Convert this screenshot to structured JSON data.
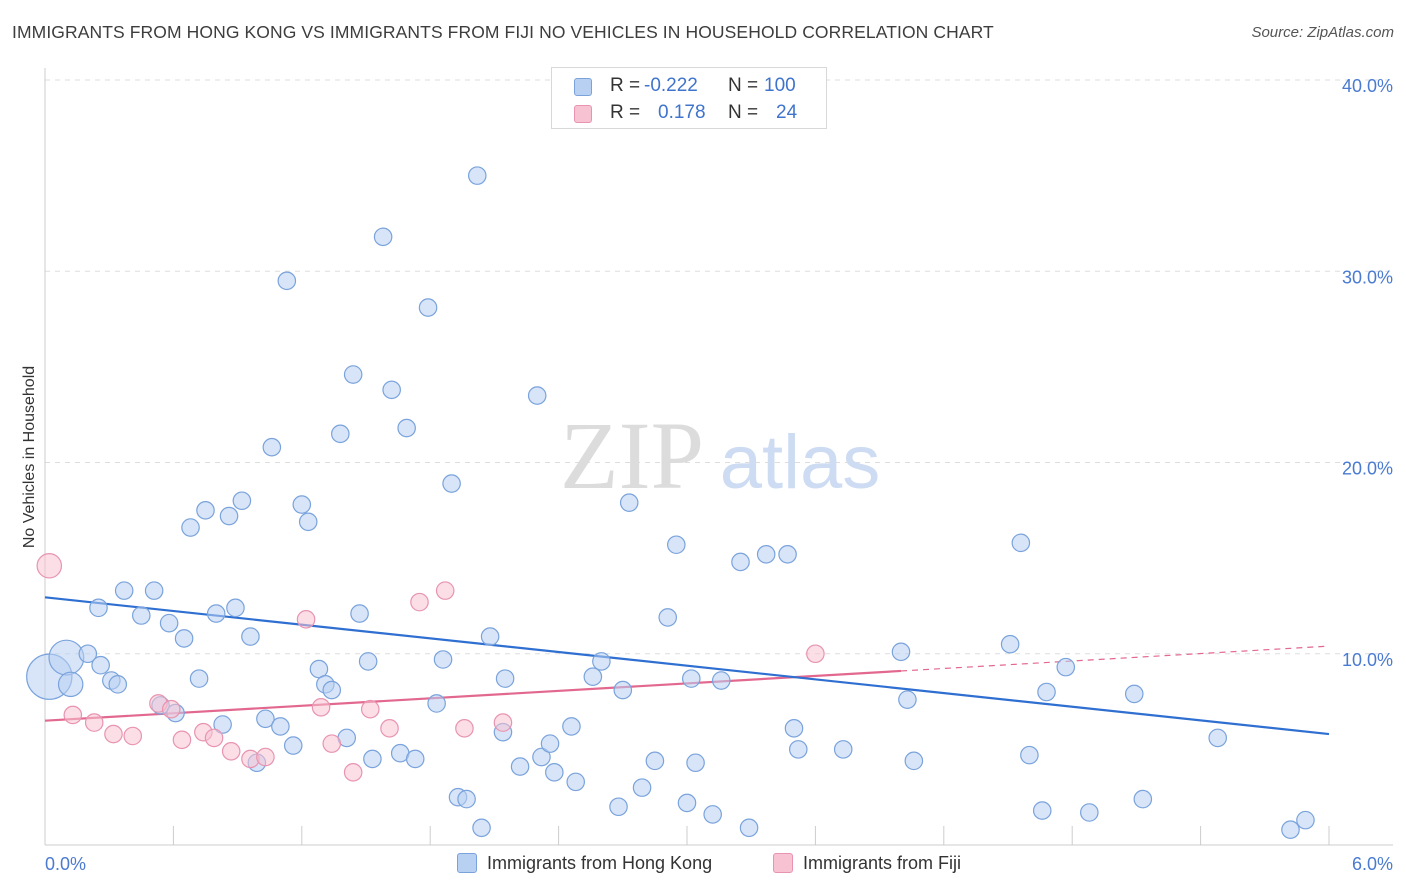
{
  "title": "IMMIGRANTS FROM HONG KONG VS IMMIGRANTS FROM FIJI NO VEHICLES IN HOUSEHOLD CORRELATION CHART",
  "source": "Source: ZipAtlas.com",
  "watermark": {
    "zip": "ZIP",
    "atlas": "atlas"
  },
  "legend": {
    "rows": [
      {
        "r_label": "R =",
        "r_value": "-0.222",
        "n_label": "N =",
        "n_value": "100"
      },
      {
        "r_label": "R =",
        "r_value": "0.178",
        "n_label": "N =",
        "n_value": "24"
      }
    ]
  },
  "bottom_legend": {
    "items": [
      {
        "label": "Immigrants from Hong Kong"
      },
      {
        "label": "Immigrants from Fiji"
      }
    ]
  },
  "colors": {
    "hk_fill": "#b8d0f2",
    "hk_stroke": "#7aa3dc",
    "hk_line": "#2f6fd1",
    "fiji_fill": "#f7c2d2",
    "fiji_stroke": "#e894b1",
    "fiji_line": "#e2688f",
    "grid": "#dddddd",
    "tick_label": "#4a7bd0"
  },
  "chart_data": {
    "type": "scatter",
    "title": "IMMIGRANTS FROM HONG KONG VS IMMIGRANTS FROM FIJI NO VEHICLES IN HOUSEHOLD CORRELATION CHART",
    "xlabel": "",
    "ylabel": "No Vehicles in Household",
    "xlim": [
      0,
      6
    ],
    "ylim": [
      0,
      40
    ],
    "x_tick_labels": [
      "0.0%",
      "6.0%"
    ],
    "y_ticks": [
      10,
      20,
      30,
      40
    ],
    "y_tick_labels": [
      "10.0%",
      "20.0%",
      "30.0%",
      "40.0%"
    ],
    "grid": true,
    "legend_position": "top-center",
    "series": [
      {
        "name": "Immigrants from Hong Kong",
        "r": -0.222,
        "n": 100,
        "trend": {
          "x": [
            0,
            6
          ],
          "y": [
            12.95,
            5.8
          ]
        },
        "points": [
          [
            0.02,
            8.8,
            26
          ],
          [
            0.1,
            9.8,
            20
          ],
          [
            0.12,
            8.4,
            14
          ],
          [
            0.2,
            10.0,
            10
          ],
          [
            0.25,
            12.4,
            10
          ],
          [
            0.26,
            9.4,
            10
          ],
          [
            0.31,
            8.6,
            10
          ],
          [
            0.34,
            8.4,
            10
          ],
          [
            0.37,
            13.3,
            10
          ],
          [
            0.45,
            12.0,
            10
          ],
          [
            0.51,
            13.3,
            10
          ],
          [
            0.54,
            7.3,
            10
          ],
          [
            0.58,
            11.6,
            10
          ],
          [
            0.61,
            6.9,
            10
          ],
          [
            0.65,
            10.8,
            10
          ],
          [
            0.68,
            16.6,
            10
          ],
          [
            0.72,
            8.7,
            10
          ],
          [
            0.75,
            17.5,
            10
          ],
          [
            0.8,
            12.1,
            10
          ],
          [
            0.83,
            6.3,
            10
          ],
          [
            0.86,
            17.2,
            10
          ],
          [
            0.89,
            12.4,
            10
          ],
          [
            0.92,
            18.0,
            10
          ],
          [
            0.96,
            10.9,
            10
          ],
          [
            0.99,
            4.3,
            10
          ],
          [
            1.03,
            6.6,
            10
          ],
          [
            1.06,
            20.8,
            10
          ],
          [
            1.1,
            6.2,
            10
          ],
          [
            1.13,
            29.5,
            10
          ],
          [
            1.16,
            5.2,
            10
          ],
          [
            1.2,
            17.8,
            10
          ],
          [
            1.23,
            16.9,
            10
          ],
          [
            1.28,
            9.2,
            10
          ],
          [
            1.31,
            8.4,
            10
          ],
          [
            1.34,
            8.1,
            10
          ],
          [
            1.38,
            21.5,
            10
          ],
          [
            1.41,
            5.6,
            10
          ],
          [
            1.44,
            24.6,
            10
          ],
          [
            1.47,
            12.1,
            10
          ],
          [
            1.51,
            9.6,
            10
          ],
          [
            1.53,
            4.5,
            10
          ],
          [
            1.58,
            31.8,
            10
          ],
          [
            1.62,
            23.8,
            10
          ],
          [
            1.66,
            4.8,
            10
          ],
          [
            1.69,
            21.8,
            10
          ],
          [
            1.73,
            4.5,
            10
          ],
          [
            1.79,
            28.1,
            10
          ],
          [
            1.83,
            7.4,
            10
          ],
          [
            1.86,
            9.7,
            10
          ],
          [
            1.9,
            18.9,
            10
          ],
          [
            1.93,
            2.5,
            10
          ],
          [
            1.97,
            2.4,
            10
          ],
          [
            2.02,
            35.0,
            10
          ],
          [
            2.04,
            0.9,
            10
          ],
          [
            2.08,
            10.9,
            10
          ],
          [
            2.14,
            5.9,
            10
          ],
          [
            2.15,
            8.7,
            10
          ],
          [
            2.22,
            4.1,
            10
          ],
          [
            2.3,
            23.5,
            10
          ],
          [
            2.32,
            4.6,
            10
          ],
          [
            2.36,
            5.3,
            10
          ],
          [
            2.38,
            3.8,
            10
          ],
          [
            2.46,
            6.2,
            10
          ],
          [
            2.48,
            3.3,
            10
          ],
          [
            2.56,
            8.8,
            10
          ],
          [
            2.6,
            9.6,
            10
          ],
          [
            2.68,
            2.0,
            10
          ],
          [
            2.7,
            8.1,
            10
          ],
          [
            2.73,
            17.9,
            10
          ],
          [
            2.79,
            3.0,
            10
          ],
          [
            2.85,
            4.4,
            10
          ],
          [
            2.91,
            11.9,
            10
          ],
          [
            2.95,
            15.7,
            10
          ],
          [
            3.0,
            2.2,
            10
          ],
          [
            3.02,
            8.7,
            10
          ],
          [
            3.04,
            4.3,
            10
          ],
          [
            3.12,
            1.6,
            10
          ],
          [
            3.16,
            8.6,
            10
          ],
          [
            3.25,
            14.8,
            10
          ],
          [
            3.29,
            0.9,
            10
          ],
          [
            3.37,
            15.2,
            10
          ],
          [
            3.47,
            15.2,
            10
          ],
          [
            3.5,
            6.1,
            10
          ],
          [
            3.52,
            5.0,
            10
          ],
          [
            3.73,
            5.0,
            10
          ],
          [
            4.0,
            10.1,
            10
          ],
          [
            4.03,
            7.6,
            10
          ],
          [
            4.06,
            4.4,
            10
          ],
          [
            4.51,
            10.5,
            10
          ],
          [
            4.56,
            15.8,
            10
          ],
          [
            4.6,
            4.7,
            10
          ],
          [
            4.66,
            1.8,
            10
          ],
          [
            4.68,
            8.0,
            10
          ],
          [
            4.77,
            9.3,
            10
          ],
          [
            4.88,
            1.7,
            10
          ],
          [
            5.09,
            7.9,
            10
          ],
          [
            5.13,
            2.4,
            10
          ],
          [
            5.48,
            5.6,
            10
          ],
          [
            5.82,
            0.8,
            10
          ],
          [
            5.89,
            1.3,
            10
          ]
        ]
      },
      {
        "name": "Immigrants from Fiji",
        "r": 0.178,
        "n": 24,
        "trend": {
          "x": [
            0,
            4.0
          ],
          "y": [
            6.5,
            9.1
          ]
        },
        "trend_dashed": {
          "x": [
            4.0,
            6.0
          ],
          "y": [
            9.1,
            10.4
          ]
        },
        "points": [
          [
            0.02,
            14.6,
            14
          ],
          [
            0.13,
            6.8,
            10
          ],
          [
            0.23,
            6.4,
            10
          ],
          [
            0.32,
            5.8,
            10
          ],
          [
            0.41,
            5.7,
            10
          ],
          [
            0.53,
            7.4,
            10
          ],
          [
            0.59,
            7.1,
            10
          ],
          [
            0.64,
            5.5,
            10
          ],
          [
            0.74,
            5.9,
            10
          ],
          [
            0.79,
            5.6,
            10
          ],
          [
            0.87,
            4.9,
            10
          ],
          [
            0.96,
            4.5,
            10
          ],
          [
            1.03,
            4.6,
            10
          ],
          [
            1.22,
            11.8,
            10
          ],
          [
            1.29,
            7.2,
            10
          ],
          [
            1.34,
            5.3,
            10
          ],
          [
            1.44,
            3.8,
            10
          ],
          [
            1.52,
            7.1,
            10
          ],
          [
            1.61,
            6.1,
            10
          ],
          [
            1.75,
            12.7,
            10
          ],
          [
            1.87,
            13.3,
            10
          ],
          [
            1.96,
            6.1,
            10
          ],
          [
            2.14,
            6.4,
            10
          ],
          [
            3.6,
            10.0,
            10
          ]
        ]
      }
    ]
  }
}
